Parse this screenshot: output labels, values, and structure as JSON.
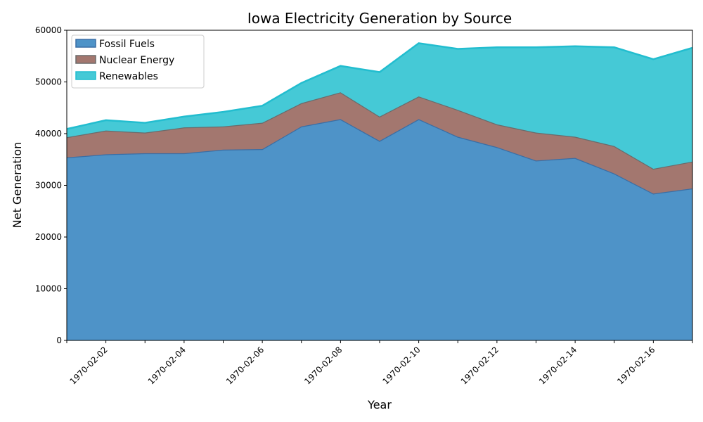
{
  "chart_data": {
    "type": "area",
    "stacked": true,
    "title": "Iowa Electricity Generation by Source",
    "xlabel": "Year",
    "ylabel": "Net Generation",
    "x": [
      "1970-02-01",
      "1970-02-02",
      "1970-02-03",
      "1970-02-04",
      "1970-02-05",
      "1970-02-06",
      "1970-02-07",
      "1970-02-08",
      "1970-02-09",
      "1970-02-10",
      "1970-02-11",
      "1970-02-12",
      "1970-02-13",
      "1970-02-14",
      "1970-02-15",
      "1970-02-16",
      "1970-02-17"
    ],
    "x_tick_labels": [
      "1970-02-02",
      "1970-02-04",
      "1970-02-06",
      "1970-02-08",
      "1970-02-10",
      "1970-02-12",
      "1970-02-14",
      "1970-02-16"
    ],
    "ylim": [
      0,
      60000
    ],
    "y_ticks": [
      0,
      10000,
      20000,
      30000,
      40000,
      50000,
      60000
    ],
    "grid": false,
    "legend_position": "top-left",
    "series": [
      {
        "name": "Fossil Fuels",
        "color": "#4e93c8",
        "edge": "#3a6ea5",
        "values": [
          35400,
          36000,
          36200,
          36200,
          36900,
          37000,
          41400,
          42800,
          38600,
          42800,
          39400,
          37400,
          34800,
          35300,
          32300,
          28400,
          29400
        ]
      },
      {
        "name": "Nuclear Energy",
        "color": "#a3776f",
        "edge": "#6b6b6b",
        "values": [
          3900,
          4600,
          4000,
          5000,
          4500,
          5100,
          4500,
          5200,
          4700,
          4400,
          5200,
          4400,
          5400,
          4100,
          5300,
          4800,
          5200
        ]
      },
      {
        "name": "Renewables",
        "color": "#45c9d6",
        "edge": "#22bdcf",
        "values": [
          1600,
          2000,
          1900,
          2100,
          2800,
          3300,
          3900,
          5100,
          8600,
          10300,
          11800,
          14900,
          16500,
          17500,
          19100,
          21200,
          22000
        ]
      }
    ]
  }
}
